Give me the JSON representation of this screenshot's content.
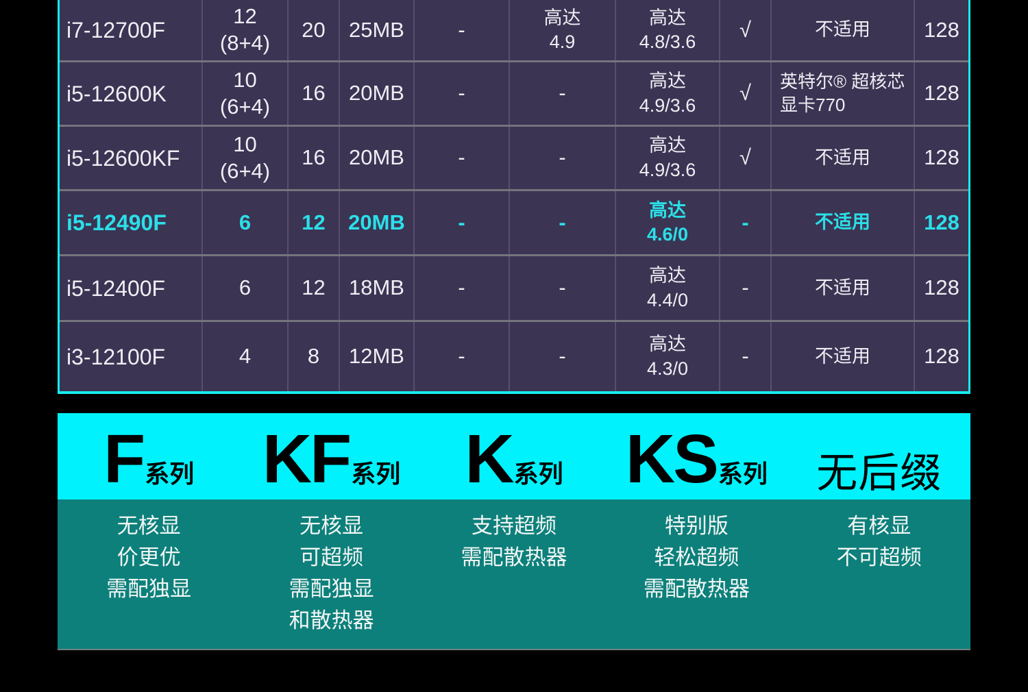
{
  "colors": {
    "page_bg": "#000000",
    "table_bg": "#3b3453",
    "table_border": "#16ecf0",
    "row_divider": "#74747d",
    "col_divider": "#564f6e",
    "text_white": "#f0eef4",
    "highlight_text": "#2bdfe8",
    "legend_header_bg": "#00f2fc",
    "legend_header_text": "#000000",
    "legend_body_bg": "#0d807b",
    "legend_body_text": "#f2f6f5"
  },
  "table": {
    "rows": [
      {
        "highlight": false,
        "cells": [
          "i7-12700F",
          "12\n(8+4)",
          "20",
          "25MB",
          "-",
          "高达\n4.9",
          "高达\n4.8/3.6",
          "√",
          "不适用",
          "128"
        ]
      },
      {
        "highlight": false,
        "cells": [
          "i5-12600K",
          "10\n(6+4)",
          "16",
          "20MB",
          "-",
          "-",
          "高达\n4.9/3.6",
          "√",
          "英特尔® 超核芯\n显卡770",
          "128"
        ]
      },
      {
        "highlight": false,
        "cells": [
          "i5-12600KF",
          "10\n(6+4)",
          "16",
          "20MB",
          "-",
          "-",
          "高达\n4.9/3.6",
          "√",
          "不适用",
          "128"
        ]
      },
      {
        "highlight": true,
        "cells": [
          "i5-12490F",
          "6",
          "12",
          "20MB",
          "-",
          "-",
          "高达\n4.6/0",
          "-",
          "不适用",
          "128"
        ]
      },
      {
        "highlight": false,
        "cells": [
          "i5-12400F",
          "6",
          "12",
          "18MB",
          "-",
          "-",
          "高达\n4.4/0",
          "-",
          "不适用",
          "128"
        ]
      },
      {
        "highlight": false,
        "cells": [
          "i3-12100F",
          "4",
          "8",
          "12MB",
          "-",
          "-",
          "高达\n4.3/0",
          "-",
          "不适用",
          "128"
        ]
      }
    ]
  },
  "legend": {
    "headers": [
      {
        "big": "F",
        "sub": "系列"
      },
      {
        "big": "KF",
        "sub": "系列"
      },
      {
        "big": "K",
        "sub": "系列"
      },
      {
        "big": "KS",
        "sub": "系列"
      },
      {
        "big": "无后缀",
        "sub": ""
      }
    ],
    "descriptions": [
      [
        "无核显",
        "价更优",
        "需配独显"
      ],
      [
        "无核显",
        "可超频",
        "需配独显",
        "和散热器"
      ],
      [
        "支持超频",
        "需配散热器"
      ],
      [
        "特别版",
        "轻松超频",
        "需配散热器"
      ],
      [
        "有核显",
        "不可超频"
      ]
    ]
  }
}
